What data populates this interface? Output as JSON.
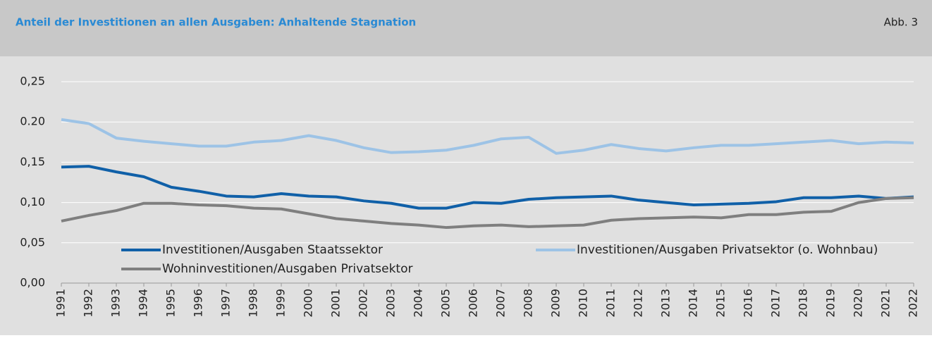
{
  "chart_data": {
    "type": "line",
    "title": "Anteil der Investitionen an allen Ausgaben: Anhaltende Stagnation",
    "figure_label": "Abb. 3",
    "categories": [
      "1991",
      "1992",
      "1993",
      "1994",
      "1995",
      "1996",
      "1997",
      "1998",
      "1999",
      "2000",
      "2001",
      "2002",
      "2003",
      "2004",
      "2005",
      "2006",
      "2007",
      "2008",
      "2009",
      "2010",
      "2011",
      "2012",
      "2013",
      "2014",
      "2015",
      "2016",
      "2017",
      "2018",
      "2019",
      "2020",
      "2021",
      "2022"
    ],
    "series": [
      {
        "name": "Investitionen/Ausgaben Staatssektor",
        "color": "#1060a8",
        "values": [
          0.144,
          0.145,
          0.138,
          0.132,
          0.119,
          0.114,
          0.108,
          0.107,
          0.111,
          0.108,
          0.107,
          0.102,
          0.099,
          0.093,
          0.093,
          0.1,
          0.099,
          0.104,
          0.106,
          0.107,
          0.108,
          0.103,
          0.1,
          0.097,
          0.098,
          0.099,
          0.101,
          0.106,
          0.106,
          0.108,
          0.105,
          0.107
        ]
      },
      {
        "name": "Investitionen/Ausgaben Privatsektor (o. Wohnbau)",
        "color": "#9dc3e6",
        "values": [
          0.203,
          0.198,
          0.18,
          0.176,
          0.173,
          0.17,
          0.17,
          0.175,
          0.177,
          0.183,
          0.177,
          0.168,
          0.162,
          0.163,
          0.165,
          0.171,
          0.179,
          0.181,
          0.161,
          0.165,
          0.172,
          0.167,
          0.164,
          0.168,
          0.171,
          0.171,
          0.173,
          0.175,
          0.177,
          0.173,
          0.175,
          0.174
        ]
      },
      {
        "name": "Wohninvestitionen/Ausgaben Privatsektor",
        "color": "#7f7f7f",
        "values": [
          0.077,
          0.084,
          0.09,
          0.099,
          0.099,
          0.097,
          0.096,
          0.093,
          0.092,
          0.086,
          0.08,
          0.077,
          0.074,
          0.072,
          0.069,
          0.071,
          0.072,
          0.07,
          0.071,
          0.072,
          0.078,
          0.08,
          0.081,
          0.082,
          0.081,
          0.085,
          0.085,
          0.088,
          0.089,
          0.1,
          0.105,
          0.106
        ]
      }
    ],
    "ylim": [
      0,
      0.25
    ],
    "yticks": [
      {
        "value": 0,
        "label": "0,00"
      },
      {
        "value": 0.05,
        "label": "0,05"
      },
      {
        "value": 0.1,
        "label": "0,10"
      },
      {
        "value": 0.15,
        "label": "0,15"
      },
      {
        "value": 0.2,
        "label": "0.20"
      },
      {
        "value": 0.25,
        "label": "0,25"
      }
    ],
    "grid": true
  }
}
